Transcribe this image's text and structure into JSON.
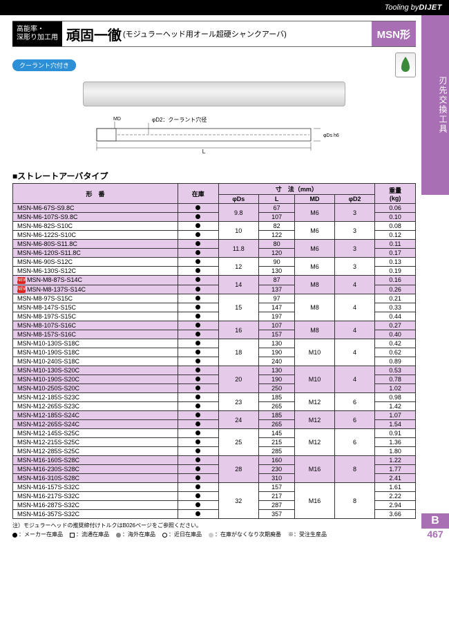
{
  "topbar": {
    "by": "Tooling by",
    "brand": "DIJET"
  },
  "sidestrip": {
    "label": "刃先交換工具",
    "section": "B",
    "page": "467"
  },
  "header": {
    "tag_line1": "高能率・",
    "tag_line2": "深彫り加工用",
    "title_main": "頑固一徹",
    "title_sub": "(モジュラーヘッド用オール超硬シャンクアーバ)",
    "msn": "MSN形"
  },
  "coolant_badge": "クーラント穴付き",
  "diagram_labels": {
    "d2": "φD2：クーラント穴径",
    "md": "MD",
    "ds": "φDs h6",
    "L": "L"
  },
  "section_title": "■ストレートアーバタイプ",
  "table": {
    "head": {
      "pn": "形　番",
      "stock": "在庫",
      "dims": "寸　法（mm）",
      "ds": "φDs",
      "L": "L",
      "md": "MD",
      "d2": "φD2",
      "weight": "重量\n(kg)"
    },
    "groups": [
      {
        "ds": "9.8",
        "md": "M6",
        "d2": "3",
        "shade": true,
        "rows": [
          {
            "pn": "MSN-M6-67S-S9.8C",
            "L": "67",
            "w": "0.06"
          },
          {
            "pn": "MSN-M6-107S-S9.8C",
            "L": "107",
            "w": "0.10"
          }
        ]
      },
      {
        "ds": "10",
        "md": "M6",
        "d2": "3",
        "rows": [
          {
            "pn": "MSN-M6-82S-S10C",
            "L": "82",
            "w": "0.08"
          },
          {
            "pn": "MSN-M6-122S-S10C",
            "L": "122",
            "w": "0.12"
          }
        ]
      },
      {
        "ds": "11.8",
        "md": "M6",
        "d2": "3",
        "shade": true,
        "rows": [
          {
            "pn": "MSN-M6-80S-S11.8C",
            "L": "80",
            "w": "0.11"
          },
          {
            "pn": "MSN-M6-120S-S11.8C",
            "L": "120",
            "w": "0.17"
          }
        ]
      },
      {
        "ds": "12",
        "md": "M6",
        "d2": "3",
        "rows": [
          {
            "pn": "MSN-M6-90S-S12C",
            "L": "90",
            "w": "0.13"
          },
          {
            "pn": "MSN-M6-130S-S12C",
            "L": "130",
            "w": "0.19"
          }
        ]
      },
      {
        "ds": "14",
        "md": "M8",
        "d2": "4",
        "shade": true,
        "rows": [
          {
            "pn": "MSN-M8-87S-S14C",
            "L": "87",
            "w": "0.16",
            "new": true
          },
          {
            "pn": "MSN-M8-137S-S14C",
            "L": "137",
            "w": "0.26",
            "new": true
          }
        ]
      },
      {
        "ds": "15",
        "md": "M8",
        "d2": "4",
        "rows": [
          {
            "pn": "MSN-M8-97S-S15C",
            "L": "97",
            "w": "0.21"
          },
          {
            "pn": "MSN-M8-147S-S15C",
            "L": "147",
            "w": "0.33"
          },
          {
            "pn": "MSN-M8-197S-S15C",
            "L": "197",
            "w": "0.44"
          }
        ]
      },
      {
        "ds": "16",
        "md": "M8",
        "d2": "4",
        "shade": true,
        "rows": [
          {
            "pn": "MSN-M8-107S-S16C",
            "L": "107",
            "w": "0.27"
          },
          {
            "pn": "MSN-M8-157S-S16C",
            "L": "157",
            "w": "0.40"
          }
        ]
      },
      {
        "ds": "18",
        "md": "M10",
        "d2": "4",
        "rows": [
          {
            "pn": "MSN-M10-130S-S18C",
            "L": "130",
            "w": "0.42"
          },
          {
            "pn": "MSN-M10-190S-S18C",
            "L": "190",
            "w": "0.62"
          },
          {
            "pn": "MSN-M10-240S-S18C",
            "L": "240",
            "w": "0.89"
          }
        ]
      },
      {
        "ds": "20",
        "md": "M10",
        "d2": "4",
        "shade": true,
        "rows": [
          {
            "pn": "MSN-M10-130S-S20C",
            "L": "130",
            "w": "0.53"
          },
          {
            "pn": "MSN-M10-190S-S20C",
            "L": "190",
            "w": "0.78"
          },
          {
            "pn": "MSN-M10-250S-S20C",
            "L": "250",
            "w": "1.02"
          }
        ]
      },
      {
        "ds": "23",
        "md": "M12",
        "d2": "6",
        "rows": [
          {
            "pn": "MSN-M12-185S-S23C",
            "L": "185",
            "w": "0.98"
          },
          {
            "pn": "MSN-M12-265S-S23C",
            "L": "265",
            "w": "1.42"
          }
        ]
      },
      {
        "ds": "24",
        "md": "M12",
        "d2": "6",
        "shade": true,
        "rows": [
          {
            "pn": "MSN-M12-185S-S24C",
            "L": "185",
            "w": "1.07"
          },
          {
            "pn": "MSN-M12-265S-S24C",
            "L": "265",
            "w": "1.54"
          }
        ]
      },
      {
        "ds": "25",
        "md": "M12",
        "d2": "6",
        "rows": [
          {
            "pn": "MSN-M12-145S-S25C",
            "L": "145",
            "w": "0.91"
          },
          {
            "pn": "MSN-M12-215S-S25C",
            "L": "215",
            "w": "1.36"
          },
          {
            "pn": "MSN-M12-285S-S25C",
            "L": "285",
            "w": "1.80"
          }
        ]
      },
      {
        "ds": "28",
        "md": "M16",
        "d2": "8",
        "shade": true,
        "rows": [
          {
            "pn": "MSN-M16-160S-S28C",
            "L": "160",
            "w": "1.22"
          },
          {
            "pn": "MSN-M16-230S-S28C",
            "L": "230",
            "w": "1.77"
          },
          {
            "pn": "MSN-M16-310S-S28C",
            "L": "310",
            "w": "2.41"
          }
        ]
      },
      {
        "ds": "32",
        "md": "M16",
        "d2": "8",
        "rows": [
          {
            "pn": "MSN-M16-157S-S32C",
            "L": "157",
            "w": "1.61"
          },
          {
            "pn": "MSN-M16-217S-S32C",
            "L": "217",
            "w": "2.22"
          },
          {
            "pn": "MSN-M16-287S-S32C",
            "L": "287",
            "w": "2.94"
          },
          {
            "pn": "MSN-M16-357S-S32C",
            "L": "357",
            "w": "3.66"
          }
        ]
      }
    ]
  },
  "footnote": "注）モジュラーヘッドの推奨締付けトルクはB026ページをご参照ください。",
  "legend": {
    "maker": "：メーカー在庫品",
    "ryutsu": "：流通在庫品",
    "kaigai": "：海外在庫品",
    "kinjitsu": "：近日在庫品",
    "jiki": "：在庫がなくなり次期廃番",
    "juchu": "：受注生産品"
  }
}
